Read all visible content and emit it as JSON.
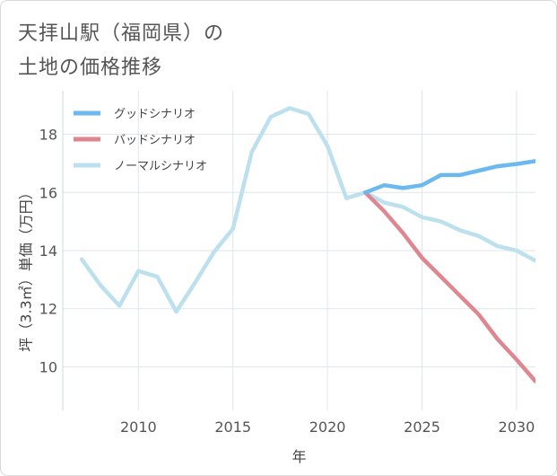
{
  "title": {
    "line1": "天拝山駅（福岡県）の",
    "line2": "土地の価格推移"
  },
  "chart_data": {
    "type": "line",
    "xlabel": "年",
    "ylabel": "坪（3.3㎡）単価（万円）",
    "xlim": [
      2006,
      2031
    ],
    "ylim": [
      8.5,
      19.5
    ],
    "xticks": [
      2010,
      2015,
      2020,
      2025,
      2030
    ],
    "yticks": [
      10,
      12,
      14,
      16,
      18
    ],
    "grid": true,
    "legend_position": "top-left",
    "series": [
      {
        "name": "グッドシナリオ",
        "color": "#6bb9ef",
        "x": [
          2022,
          2023,
          2024,
          2025,
          2026,
          2027,
          2028,
          2029,
          2030,
          2031
        ],
        "values": [
          16.0,
          16.25,
          16.15,
          16.25,
          16.6,
          16.6,
          16.75,
          16.9,
          16.98,
          17.08
        ]
      },
      {
        "name": "バッドシナリオ",
        "color": "#de8790",
        "x": [
          2022,
          2023,
          2024,
          2025,
          2026,
          2027,
          2028,
          2029,
          2030,
          2031
        ],
        "values": [
          16.0,
          15.35,
          14.6,
          13.75,
          13.1,
          12.45,
          11.8,
          10.95,
          10.25,
          9.5
        ]
      },
      {
        "name": "ノーマルシナリオ",
        "color": "#bde0ee",
        "x": [
          2007,
          2008,
          2009,
          2010,
          2011,
          2012,
          2013,
          2014,
          2015,
          2016,
          2017,
          2018,
          2019,
          2020,
          2021,
          2022,
          2023,
          2024,
          2025,
          2026,
          2027,
          2028,
          2029,
          2030,
          2031
        ],
        "values": [
          13.7,
          12.8,
          12.1,
          13.3,
          13.1,
          11.9,
          12.9,
          13.95,
          14.75,
          17.4,
          18.6,
          18.9,
          18.7,
          17.6,
          15.8,
          16.0,
          15.65,
          15.5,
          15.15,
          15.0,
          14.7,
          14.5,
          14.15,
          14.0,
          13.65
        ]
      }
    ]
  }
}
